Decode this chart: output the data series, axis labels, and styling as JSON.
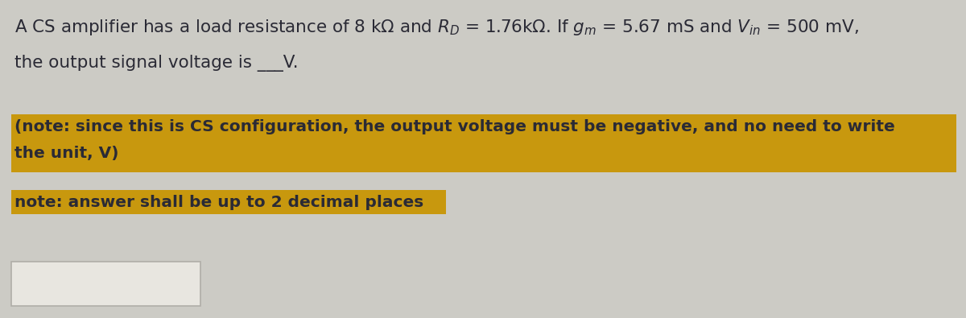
{
  "bg_color": "#cccbc5",
  "text_color": "#2a2a35",
  "highlight_color": "#c8980e",
  "box_bg": "#e8e6e0",
  "font_size_main": 15.5,
  "font_size_note": 14.5,
  "line1": "A CS amplifier has a load resistance of 8 kΩ and $R_D$ = 1.76kΩ. If $g_m$ = 5.67 mS and $V_{in}$ = 500 mV,",
  "line2": "the output signal voltage is ___V.",
  "note1a": "(note: since this is CS configuration, the output voltage must be negative, and no need to write",
  "note1b": "the unit, V)",
  "note2": "note: answer shall be up to 2 decimal places"
}
